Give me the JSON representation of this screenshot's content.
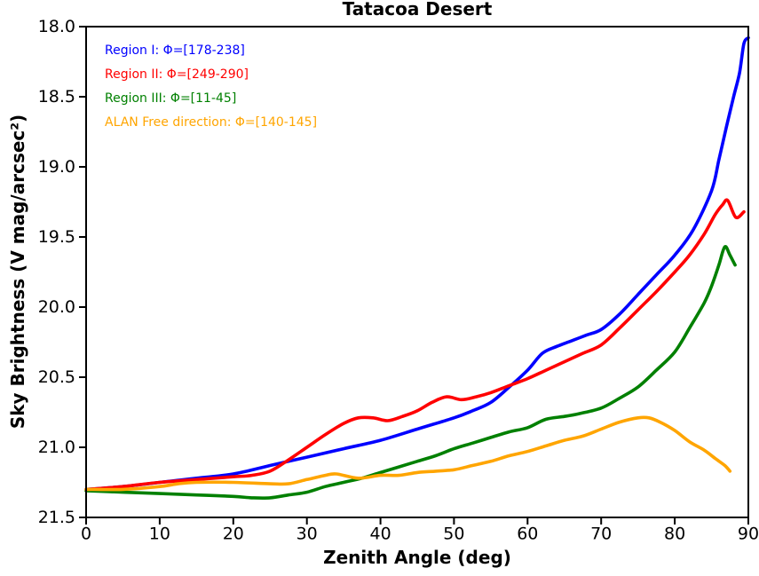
{
  "chart_data": {
    "type": "line",
    "title": "Tatacoa Desert",
    "xlabel": "Zenith Angle (deg)",
    "ylabel": "Sky Brightness (V mag/arcsec²)",
    "xlim": [
      0,
      90
    ],
    "ylim": [
      21.5,
      18.0
    ],
    "y_axis_inverted": true,
    "grid": false,
    "legend_position": "upper-left-inside-text-only",
    "xticks": [
      0,
      10,
      20,
      30,
      40,
      50,
      60,
      70,
      80,
      90
    ],
    "yticks": [
      18.0,
      18.5,
      19.0,
      19.5,
      20.0,
      20.5,
      21.0,
      21.5
    ],
    "series": [
      {
        "name": "Region I",
        "label": "Region I: Φ=[178-238]",
        "color": "#0000ff",
        "points": [
          [
            0,
            21.3
          ],
          [
            5,
            21.28
          ],
          [
            10,
            21.25
          ],
          [
            15,
            21.22
          ],
          [
            20,
            21.19
          ],
          [
            25,
            21.13
          ],
          [
            30,
            21.07
          ],
          [
            35,
            21.01
          ],
          [
            40,
            20.95
          ],
          [
            45,
            20.87
          ],
          [
            50,
            20.79
          ],
          [
            52.5,
            20.74
          ],
          [
            55,
            20.68
          ],
          [
            57.5,
            20.57
          ],
          [
            60,
            20.45
          ],
          [
            62,
            20.33
          ],
          [
            64,
            20.28
          ],
          [
            66,
            20.24
          ],
          [
            68,
            20.2
          ],
          [
            70,
            20.16
          ],
          [
            72.5,
            20.05
          ],
          [
            75,
            19.91
          ],
          [
            77.5,
            19.77
          ],
          [
            80,
            19.63
          ],
          [
            82.5,
            19.45
          ],
          [
            85,
            19.17
          ],
          [
            86,
            18.95
          ],
          [
            87,
            18.72
          ],
          [
            88,
            18.5
          ],
          [
            88.8,
            18.33
          ],
          [
            89.4,
            18.12
          ],
          [
            90,
            18.08
          ]
        ]
      },
      {
        "name": "Region II",
        "label": "Region II: Φ=[249-290]",
        "color": "#ff0000",
        "points": [
          [
            0,
            21.3
          ],
          [
            5,
            21.28
          ],
          [
            10,
            21.25
          ],
          [
            15,
            21.23
          ],
          [
            20,
            21.21
          ],
          [
            22.5,
            21.2
          ],
          [
            25,
            21.17
          ],
          [
            27.5,
            21.09
          ],
          [
            30,
            21.0
          ],
          [
            32.5,
            20.91
          ],
          [
            35,
            20.83
          ],
          [
            37,
            20.79
          ],
          [
            39,
            20.79
          ],
          [
            41,
            20.81
          ],
          [
            43,
            20.78
          ],
          [
            45,
            20.74
          ],
          [
            47,
            20.68
          ],
          [
            49,
            20.64
          ],
          [
            51,
            20.66
          ],
          [
            53,
            20.64
          ],
          [
            55,
            20.61
          ],
          [
            57.5,
            20.56
          ],
          [
            60,
            20.51
          ],
          [
            62.5,
            20.45
          ],
          [
            65,
            20.39
          ],
          [
            67.5,
            20.33
          ],
          [
            70,
            20.27
          ],
          [
            72.5,
            20.15
          ],
          [
            75,
            20.02
          ],
          [
            77.5,
            19.89
          ],
          [
            80,
            19.75
          ],
          [
            82,
            19.63
          ],
          [
            84,
            19.48
          ],
          [
            85.5,
            19.34
          ],
          [
            86.5,
            19.27
          ],
          [
            87.2,
            19.24
          ],
          [
            88.3,
            19.36
          ],
          [
            89.4,
            19.32
          ]
        ]
      },
      {
        "name": "Region III",
        "label": "Region III: Φ=[11-45]",
        "color": "#008000",
        "points": [
          [
            0,
            21.31
          ],
          [
            5,
            21.32
          ],
          [
            10,
            21.33
          ],
          [
            15,
            21.34
          ],
          [
            20,
            21.35
          ],
          [
            22.5,
            21.36
          ],
          [
            25,
            21.36
          ],
          [
            27.5,
            21.34
          ],
          [
            30,
            21.32
          ],
          [
            32.5,
            21.28
          ],
          [
            35,
            21.25
          ],
          [
            37.5,
            21.22
          ],
          [
            40,
            21.18
          ],
          [
            42.5,
            21.14
          ],
          [
            45,
            21.1
          ],
          [
            47.5,
            21.06
          ],
          [
            50,
            21.01
          ],
          [
            52.5,
            20.97
          ],
          [
            55,
            20.93
          ],
          [
            57.5,
            20.89
          ],
          [
            60,
            20.86
          ],
          [
            62.5,
            20.8
          ],
          [
            65,
            20.78
          ],
          [
            67,
            20.76
          ],
          [
            70,
            20.72
          ],
          [
            72.5,
            20.65
          ],
          [
            75,
            20.57
          ],
          [
            77.5,
            20.45
          ],
          [
            80,
            20.32
          ],
          [
            82,
            20.15
          ],
          [
            84,
            19.97
          ],
          [
            85,
            19.85
          ],
          [
            86,
            19.7
          ],
          [
            86.8,
            19.57
          ],
          [
            87.5,
            19.63
          ],
          [
            88.2,
            19.7
          ]
        ]
      },
      {
        "name": "ALAN Free direction",
        "label": "ALAN Free direction: Φ=[140-145]",
        "color": "#ffa500",
        "points": [
          [
            0,
            21.3
          ],
          [
            5,
            21.3
          ],
          [
            10,
            21.28
          ],
          [
            12.5,
            21.26
          ],
          [
            15,
            21.25
          ],
          [
            20,
            21.25
          ],
          [
            25,
            21.26
          ],
          [
            27.5,
            21.26
          ],
          [
            30,
            21.23
          ],
          [
            32.5,
            21.2
          ],
          [
            34,
            21.19
          ],
          [
            37,
            21.22
          ],
          [
            40,
            21.2
          ],
          [
            42.5,
            21.2
          ],
          [
            45,
            21.18
          ],
          [
            47.5,
            21.17
          ],
          [
            50,
            21.16
          ],
          [
            52.5,
            21.13
          ],
          [
            55,
            21.1
          ],
          [
            57.5,
            21.06
          ],
          [
            60,
            21.03
          ],
          [
            62.5,
            20.99
          ],
          [
            65,
            20.95
          ],
          [
            67.5,
            20.92
          ],
          [
            70,
            20.87
          ],
          [
            72.5,
            20.82
          ],
          [
            75,
            20.79
          ],
          [
            76.5,
            20.79
          ],
          [
            78,
            20.82
          ],
          [
            80,
            20.88
          ],
          [
            82,
            20.96
          ],
          [
            84,
            21.02
          ],
          [
            85.5,
            21.08
          ],
          [
            86.8,
            21.13
          ],
          [
            87.5,
            21.17
          ]
        ]
      }
    ],
    "style": {
      "line_width": 3.6,
      "spine_width": 2,
      "tick_length": 8,
      "axes_color": "#000000",
      "background": "#ffffff"
    }
  }
}
